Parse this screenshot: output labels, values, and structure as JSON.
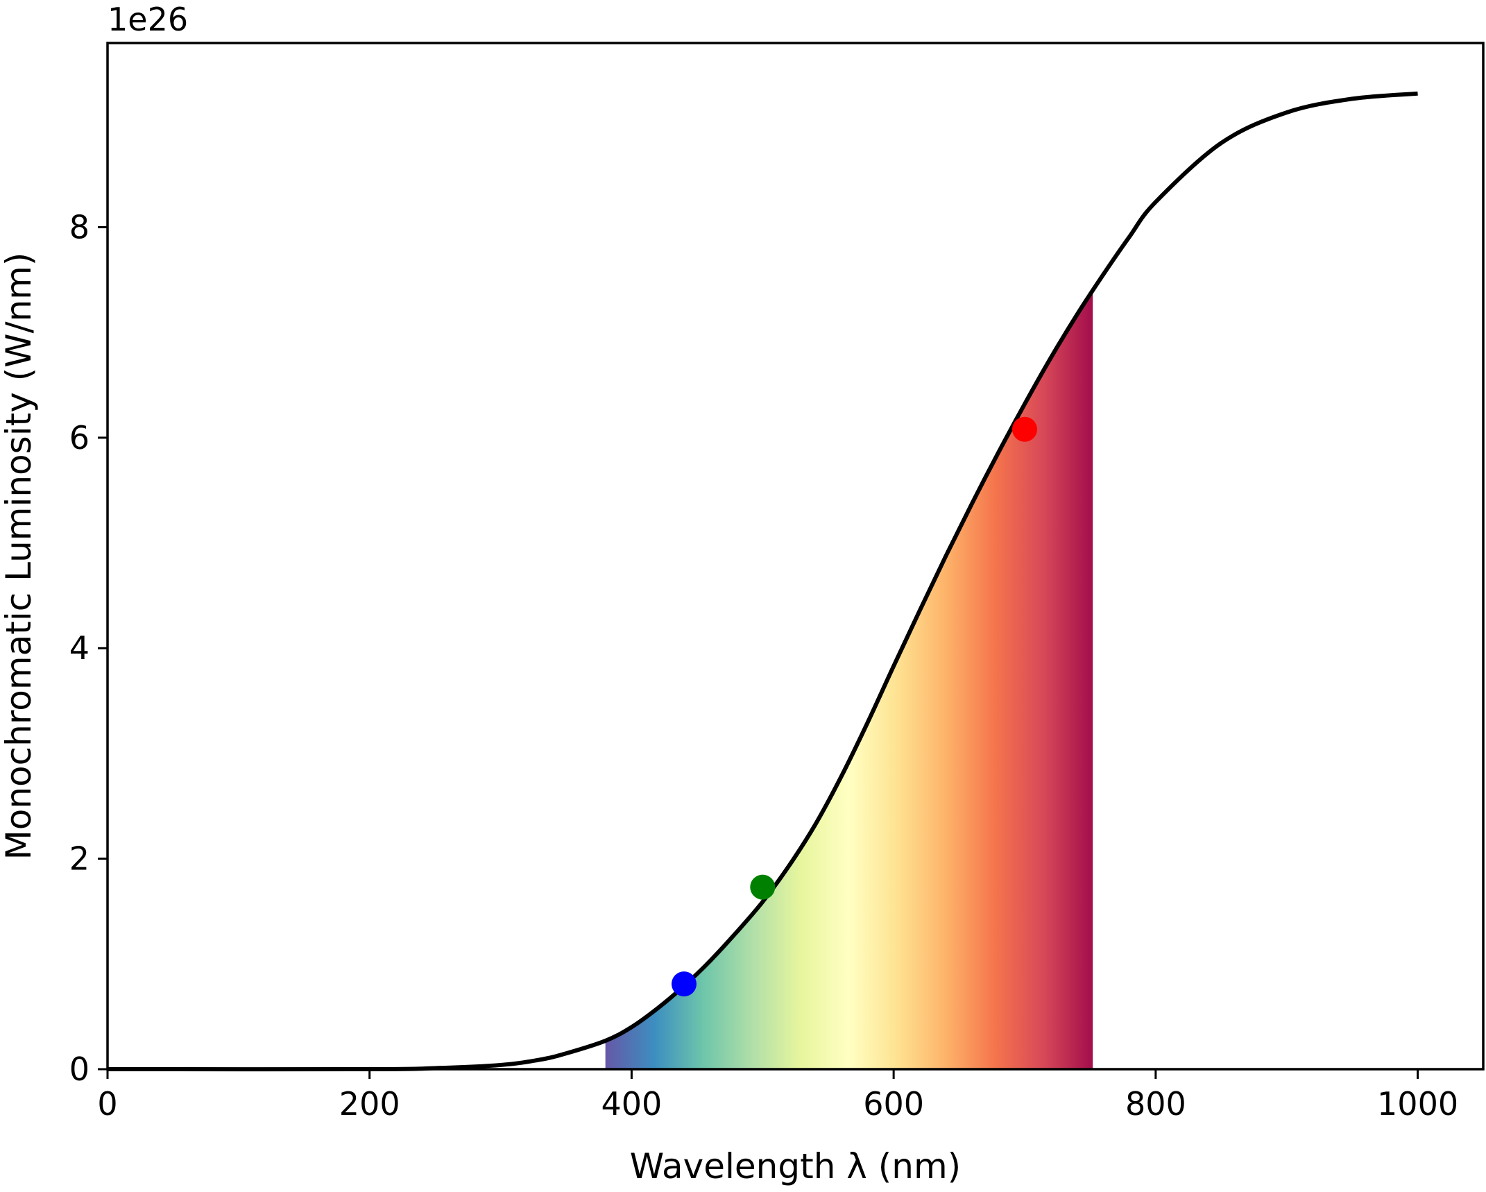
{
  "chart_data": {
    "type": "line",
    "title": "",
    "xlabel": "Wavelength λ (nm)",
    "ylabel": "Monochromatic Luminosity (W/nm)",
    "y_offset_text": "1e26",
    "xlim": [
      0,
      1050
    ],
    "ylim": [
      0,
      9.75
    ],
    "x_ticks": [
      0,
      200,
      400,
      600,
      800,
      1000
    ],
    "x_tick_labels": [
      "0",
      "200",
      "400",
      "600",
      "800",
      "1000"
    ],
    "y_ticks": [
      0,
      2,
      4,
      6,
      8
    ],
    "y_tick_labels": [
      "0",
      "2",
      "4",
      "6",
      "8"
    ],
    "grid": false,
    "series": [
      {
        "color": "#000000",
        "x": [
          0,
          200,
          250,
          300,
          330,
          350,
          380,
          400,
          420,
          440,
          460,
          480,
          500,
          520,
          540,
          560,
          580,
          600,
          620,
          640,
          660,
          680,
          700,
          720,
          740,
          760,
          780,
          800,
          850,
          900,
          950,
          1000
        ],
        "y": [
          0.0,
          0.0,
          0.01,
          0.04,
          0.09,
          0.15,
          0.27,
          0.4,
          0.58,
          0.79,
          1.03,
          1.3,
          1.59,
          1.93,
          2.32,
          2.78,
          3.29,
          3.83,
          4.36,
          4.88,
          5.38,
          5.86,
          6.32,
          6.76,
          7.17,
          7.55,
          7.91,
          8.24,
          8.8,
          9.09,
          9.22,
          9.27
        ]
      }
    ],
    "markers": [
      {
        "x": 440,
        "y": 0.81,
        "color": "#0000ff"
      },
      {
        "x": 500,
        "y": 1.73,
        "color": "#008000"
      },
      {
        "x": 700,
        "y": 6.08,
        "color": "#ff0000"
      }
    ],
    "visible_band": {
      "x_start": 380,
      "x_end": 752,
      "colormap_stops": [
        "#5e4fa2",
        "#3288bd",
        "#66c2a5",
        "#abdda4",
        "#e6f598",
        "#ffffbf",
        "#fee08b",
        "#fdae61",
        "#f46d43",
        "#d53e4f",
        "#9e0142"
      ]
    }
  }
}
